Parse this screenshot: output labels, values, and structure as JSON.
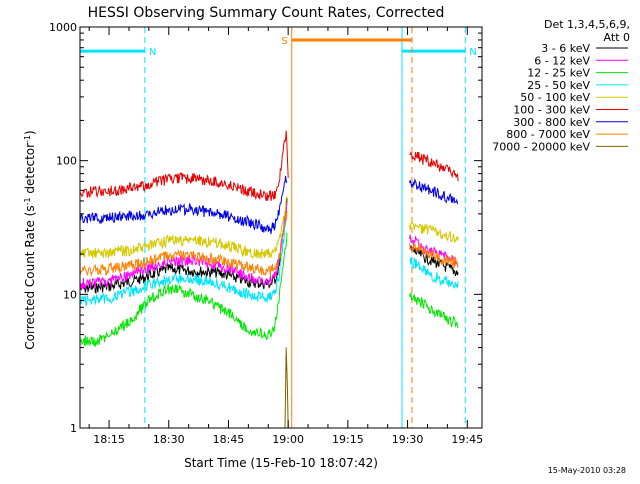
{
  "chart_data": {
    "type": "line",
    "title": "HESSI Observing Summary Count Rates, Corrected",
    "xlabel": "Start Time (15-Feb-10 18:07:42)",
    "ylabel": "Corrected Count Rate (s⁻¹ detector⁻¹)",
    "ylabel_parts": {
      "base": "Corrected Count Rate (s",
      "exp1": "-1",
      "mid": " detector",
      "exp2": "-1",
      "end": ")"
    },
    "x_unit": "minutes after 18:07:42",
    "xlim": [
      0,
      101
    ],
    "ylim": [
      1,
      1000
    ],
    "y_scale": "log",
    "x_ticks": [
      {
        "label": "18:15",
        "x": 7.3
      },
      {
        "label": "18:30",
        "x": 22.3
      },
      {
        "label": "18:45",
        "x": 37.3
      },
      {
        "label": "19:00",
        "x": 52.3
      },
      {
        "label": "19:15",
        "x": 67.3
      },
      {
        "label": "19:30",
        "x": 82.3
      },
      {
        "label": "19:45",
        "x": 97.3
      }
    ],
    "y_ticks": [
      {
        "label": "1",
        "y": 1
      },
      {
        "label": "10",
        "y": 10
      },
      {
        "label": "100",
        "y": 100
      },
      {
        "label": "1000",
        "y": 1000
      }
    ],
    "legend": {
      "position": "right",
      "header": [
        "Det 1,3,4,5,6,9,",
        "Att 0"
      ],
      "entries": [
        {
          "label": "3 - 6 keV",
          "color": "#000000"
        },
        {
          "label": "6 - 12 keV",
          "color": "#ff00ff"
        },
        {
          "label": "12 - 25 keV",
          "color": "#00e600"
        },
        {
          "label": "25 - 50 keV",
          "color": "#00e5ff"
        },
        {
          "label": "50 - 100 keV",
          "color": "#d4c800"
        },
        {
          "label": "100 - 300 keV",
          "color": "#e60000"
        },
        {
          "label": "300 - 800 keV",
          "color": "#0000e6"
        },
        {
          "label": "800 - 7000 keV",
          "color": "#ff7f00"
        },
        {
          "label": "7000 - 20000 keV",
          "color": "#806000"
        }
      ]
    },
    "series": [
      {
        "name": "3 - 6 keV",
        "color": "#000000",
        "points": [
          [
            0,
            11
          ],
          [
            8,
            11.5
          ],
          [
            15,
            13
          ],
          [
            22,
            15.5
          ],
          [
            28,
            15
          ],
          [
            35,
            14.5
          ],
          [
            42,
            12.5
          ],
          [
            46,
            12
          ],
          [
            48,
            12
          ],
          [
            49,
            13
          ],
          [
            50,
            16
          ],
          [
            51,
            28
          ],
          [
            52,
            48
          ],
          [
            82.8,
            22
          ],
          [
            88,
            18
          ],
          [
            92,
            16
          ],
          [
            95,
            14.5
          ]
        ]
      },
      {
        "name": "6 - 12 keV",
        "color": "#ff00ff",
        "points": [
          [
            0,
            12
          ],
          [
            8,
            12.5
          ],
          [
            15,
            15
          ],
          [
            22,
            18
          ],
          [
            28,
            18
          ],
          [
            35,
            16.5
          ],
          [
            42,
            13.5
          ],
          [
            46,
            12.5
          ],
          [
            48,
            12.5
          ],
          [
            49,
            14
          ],
          [
            50,
            18
          ],
          [
            51,
            30
          ],
          [
            52,
            50
          ],
          [
            82.8,
            26
          ],
          [
            88,
            21
          ],
          [
            92,
            19
          ],
          [
            95,
            17
          ]
        ]
      },
      {
        "name": "12 - 25 keV",
        "color": "#00e600",
        "points": [
          [
            0,
            4.5
          ],
          [
            5,
            4.5
          ],
          [
            8,
            5
          ],
          [
            13,
            6.5
          ],
          [
            18,
            9.5
          ],
          [
            22,
            11
          ],
          [
            26,
            10.5
          ],
          [
            32,
            9
          ],
          [
            38,
            7
          ],
          [
            42,
            5.5
          ],
          [
            46,
            5
          ],
          [
            48,
            5
          ],
          [
            49,
            6
          ],
          [
            50,
            9
          ],
          [
            51,
            16
          ],
          [
            52,
            28
          ],
          [
            82.8,
            10
          ],
          [
            86,
            8.5
          ],
          [
            89,
            7.5
          ],
          [
            92,
            6.5
          ],
          [
            95,
            6
          ]
        ]
      },
      {
        "name": "25 - 50 keV",
        "color": "#00e5ff",
        "points": [
          [
            0,
            9
          ],
          [
            8,
            9.5
          ],
          [
            15,
            11
          ],
          [
            22,
            13
          ],
          [
            28,
            13
          ],
          [
            35,
            12
          ],
          [
            42,
            10
          ],
          [
            46,
            9.5
          ],
          [
            48,
            9.5
          ],
          [
            49,
            10.5
          ],
          [
            50,
            14
          ],
          [
            51,
            24
          ],
          [
            52,
            42
          ],
          [
            82.8,
            18
          ],
          [
            88,
            14
          ],
          [
            92,
            12.5
          ],
          [
            95,
            11.5
          ]
        ]
      },
      {
        "name": "50 - 100 keV",
        "color": "#d4c800",
        "points": [
          [
            0,
            20
          ],
          [
            8,
            20.5
          ],
          [
            15,
            22
          ],
          [
            22,
            25
          ],
          [
            28,
            25.5
          ],
          [
            35,
            24
          ],
          [
            42,
            21
          ],
          [
            46,
            20
          ],
          [
            48,
            20
          ],
          [
            49,
            21
          ],
          [
            50,
            25
          ],
          [
            51,
            36
          ],
          [
            52,
            55
          ],
          [
            82.8,
            33
          ],
          [
            88,
            30
          ],
          [
            92,
            28
          ],
          [
            95,
            26
          ]
        ]
      },
      {
        "name": "100 - 300 keV",
        "color": "#e60000",
        "points": [
          [
            0,
            58
          ],
          [
            8,
            59
          ],
          [
            15,
            64
          ],
          [
            22,
            72
          ],
          [
            28,
            74
          ],
          [
            35,
            69
          ],
          [
            42,
            59
          ],
          [
            46,
            55
          ],
          [
            48,
            54
          ],
          [
            49,
            56
          ],
          [
            50,
            70
          ],
          [
            51,
            110
          ],
          [
            51.8,
            170
          ],
          [
            52.3,
            80
          ],
          [
            82.8,
            112
          ],
          [
            88,
            98
          ],
          [
            92,
            86
          ],
          [
            95,
            76
          ]
        ]
      },
      {
        "name": "300 - 800 keV",
        "color": "#0000e6",
        "points": [
          [
            0,
            37
          ],
          [
            8,
            37.5
          ],
          [
            15,
            39
          ],
          [
            22,
            43
          ],
          [
            28,
            43
          ],
          [
            35,
            40
          ],
          [
            42,
            35
          ],
          [
            46,
            32
          ],
          [
            48,
            31
          ],
          [
            49,
            33
          ],
          [
            50,
            42
          ],
          [
            51,
            62
          ],
          [
            52,
            75
          ],
          [
            82.8,
            68
          ],
          [
            88,
            60
          ],
          [
            92,
            53
          ],
          [
            95,
            49
          ]
        ]
      },
      {
        "name": "800 - 7000 keV",
        "color": "#ff7f00",
        "points": [
          [
            0,
            15
          ],
          [
            8,
            15.5
          ],
          [
            15,
            17
          ],
          [
            22,
            19.5
          ],
          [
            28,
            19.5
          ],
          [
            35,
            18
          ],
          [
            42,
            16
          ],
          [
            46,
            15
          ],
          [
            48,
            15
          ],
          [
            49,
            16
          ],
          [
            50,
            19
          ],
          [
            51,
            28
          ],
          [
            52,
            42
          ],
          [
            82.8,
            24
          ],
          [
            88,
            20
          ],
          [
            92,
            18
          ],
          [
            95,
            17
          ]
        ]
      },
      {
        "name": "7000 - 20000 keV",
        "color": "#806000",
        "points": [
          [
            51.5,
            1
          ],
          [
            51.8,
            4
          ],
          [
            52.1,
            2
          ],
          [
            52.3,
            1
          ]
        ]
      }
    ],
    "annotations": [
      {
        "label": "N",
        "color": "#00e5ff",
        "type": "night",
        "segments": [
          [
            0,
            660
          ],
          [
            16.3,
            660
          ]
        ],
        "vlines": [
          {
            "x": 0,
            "style": "solid"
          },
          {
            "x": 16.3,
            "style": "dashed"
          }
        ]
      },
      {
        "label": "N",
        "color": "#00e5ff",
        "type": "night",
        "segments": [
          [
            80.9,
            660
          ],
          [
            96.8,
            660
          ]
        ],
        "vlines": [
          {
            "x": 80.9,
            "style": "solid"
          },
          {
            "x": 96.8,
            "style": "dashed"
          }
        ]
      },
      {
        "label": "S",
        "color": "#ff7f00",
        "type": "saa",
        "segments": [
          [
            53.2,
            800
          ],
          [
            83.4,
            800
          ]
        ],
        "vlines": [
          {
            "x": 53.2,
            "style": "solid"
          },
          {
            "x": 83.4,
            "style": "dashed"
          }
        ]
      }
    ]
  },
  "footer": {
    "timestamp": "15-May-2010 03:28"
  }
}
